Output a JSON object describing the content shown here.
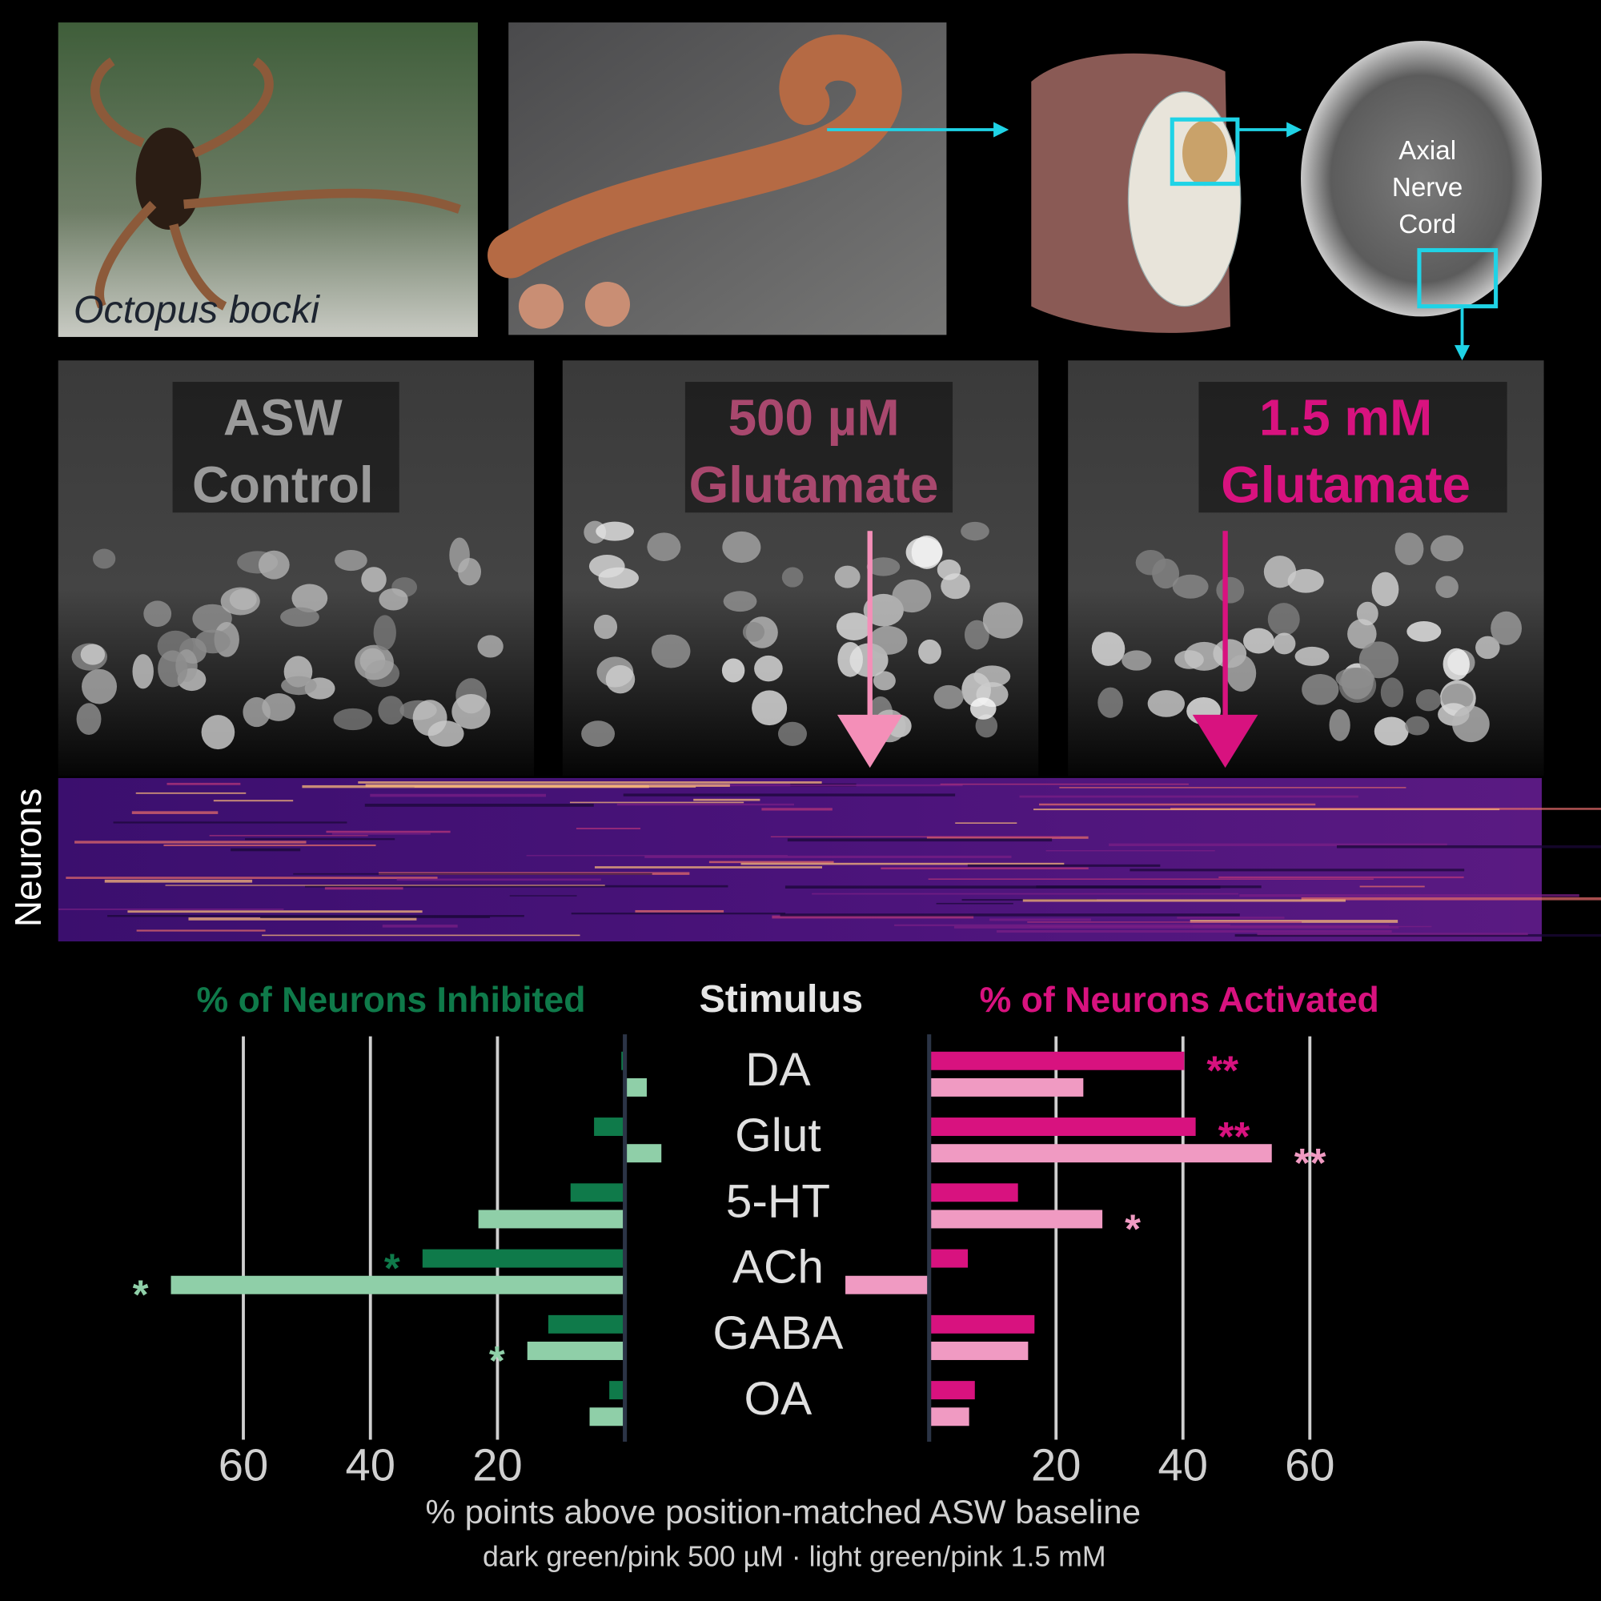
{
  "panels": {
    "species_label": "Octopus bocki",
    "cord_label": [
      "Axial",
      "Nerve",
      "Cord"
    ],
    "conditions": [
      {
        "lines": [
          "ASW",
          "Control"
        ],
        "color": "#9a9a9a"
      },
      {
        "lines": [
          "500 µM",
          "Glutamate"
        ],
        "color": "#a9486e"
      },
      {
        "lines": [
          "1.5 mM",
          "Glutamate"
        ],
        "color": "#d8127f"
      }
    ],
    "heatmap_label": "Neurons"
  },
  "chart_data": {
    "type": "butterfly-bar",
    "center_title": "Stimulus",
    "categories": [
      "DA",
      "Glut",
      "5-HT",
      "ACh",
      "GABA",
      "OA"
    ],
    "xlabel": "% points above position-matched ASW baseline",
    "note": "dark green/pink 500 µM · light green/pink 1.5 mM",
    "left": {
      "title": "% of Neurons Inhibited",
      "title_color": "#0f7a4a",
      "xlim": [
        75,
        -6
      ],
      "xticks": [
        60,
        40,
        20
      ],
      "series": [
        {
          "color": "#0f7a4a",
          "values": [
            0.5,
            4.8,
            8.5,
            31.8,
            12,
            2.4
          ]
        },
        {
          "color": "#8fcfa8",
          "values": [
            -3.5,
            -5.8,
            23,
            71.4,
            15.3,
            5.5
          ]
        }
      ],
      "annotations": [
        {
          "series": 0,
          "index": 3,
          "text": "*"
        },
        {
          "series": 1,
          "index": 3,
          "text": "*"
        },
        {
          "series": 1,
          "index": 4,
          "text": "*"
        }
      ]
    },
    "right": {
      "title": "% of Neurons Activated",
      "title_color": "#d8127f",
      "xlim": [
        -14,
        70
      ],
      "xticks": [
        20,
        40,
        60
      ],
      "series": [
        {
          "color": "#d8127f",
          "values": [
            40.2,
            42,
            14,
            6.1,
            16.6,
            7.2
          ]
        },
        {
          "color": "#f09ac2",
          "values": [
            24.3,
            54,
            27.3,
            -13.2,
            15.6,
            6.3
          ]
        }
      ],
      "annotations": [
        {
          "series": 0,
          "index": 0,
          "text": "**"
        },
        {
          "series": 0,
          "index": 1,
          "text": "**"
        },
        {
          "series": 1,
          "index": 1,
          "text": "**"
        },
        {
          "series": 1,
          "index": 2,
          "text": "*"
        }
      ]
    }
  }
}
